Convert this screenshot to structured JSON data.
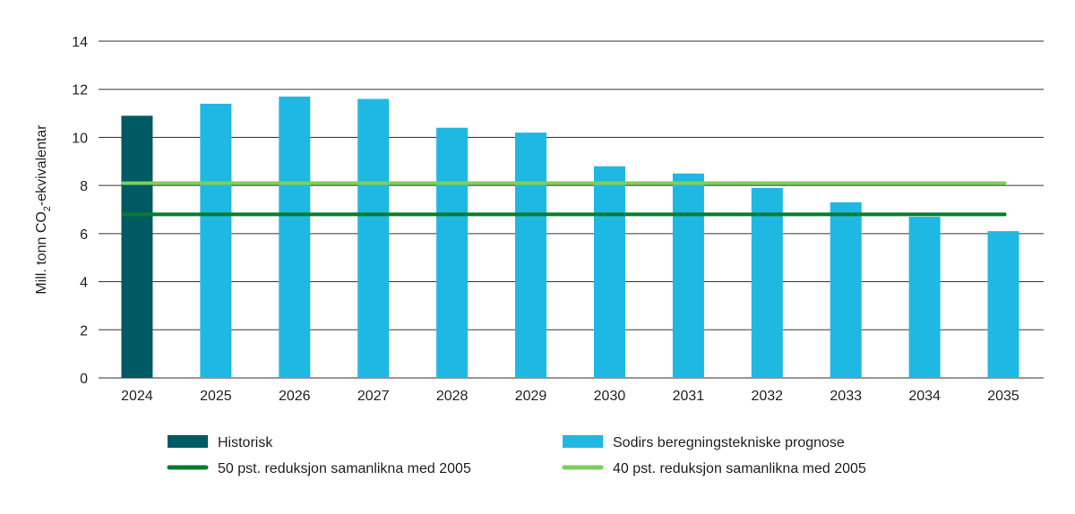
{
  "chart_data": {
    "type": "bar",
    "title": "",
    "xlabel": "",
    "ylabel": "Mill. tonn CO2-ekvivalentar",
    "ylabel_parts": {
      "pre": "Mill. tonn CO",
      "sub": "2",
      "post": "-ekvivalentar"
    },
    "ylim": [
      0,
      14
    ],
    "yticks": [
      0,
      2,
      4,
      6,
      8,
      10,
      12,
      14
    ],
    "grid": true,
    "legend_position": "bottom",
    "categories": [
      "2024",
      "2025",
      "2026",
      "2027",
      "2028",
      "2029",
      "2030",
      "2031",
      "2032",
      "2033",
      "2034",
      "2035"
    ],
    "bar_series": [
      {
        "name": "Historisk",
        "color": "#005a64",
        "values": [
          10.9,
          null,
          null,
          null,
          null,
          null,
          null,
          null,
          null,
          null,
          null,
          null
        ]
      },
      {
        "name": "Sodirs beregningstekniske prognose",
        "color": "#1fb8e3",
        "values": [
          null,
          11.4,
          11.7,
          11.6,
          10.4,
          10.2,
          8.8,
          8.5,
          7.9,
          7.3,
          6.7,
          6.1
        ]
      }
    ],
    "line_series": [
      {
        "name": "50 pst. reduksjon samanlikna med 2005",
        "color": "#067c2e",
        "value": 6.8
      },
      {
        "name": "40 pst. reduksjon samanlikna med 2005",
        "color": "#7ccf5b",
        "value": 8.1
      }
    ],
    "legend": [
      {
        "label": "Historisk",
        "color": "#005a64",
        "kind": "bar"
      },
      {
        "label": "Sodirs beregningstekniske prognose",
        "color": "#1fb8e3",
        "kind": "bar"
      },
      {
        "label": "50 pst. reduksjon samanlikna med 2005",
        "color": "#067c2e",
        "kind": "line"
      },
      {
        "label": "40 pst. reduksjon samanlikna med 2005",
        "color": "#7ccf5b",
        "kind": "line"
      }
    ]
  }
}
